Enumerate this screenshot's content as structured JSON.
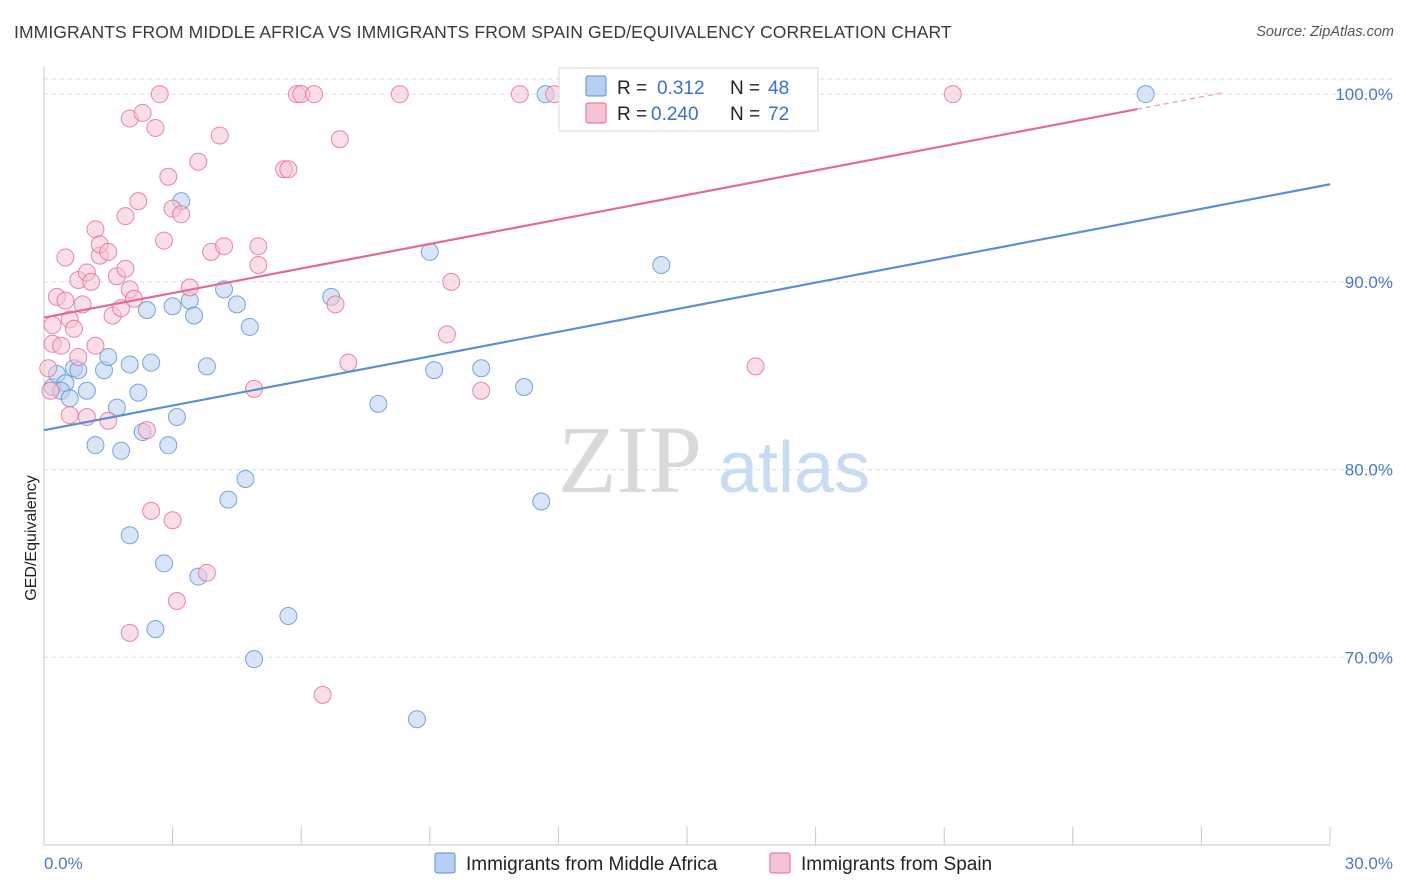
{
  "title": "IMMIGRANTS FROM MIDDLE AFRICA VS IMMIGRANTS FROM SPAIN GED/EQUIVALENCY CORRELATION CHART",
  "source": "Source: ZipAtlas.com",
  "watermark": {
    "zip": "ZIP",
    "atlas": "atlas"
  },
  "colors": {
    "blue": "#5b8fd6",
    "blue_fill": "#b7cff1",
    "pink": "#e46a92",
    "pink_fill": "#f6c3d3",
    "grid": "#dddddd",
    "tick_text": "#4a78c8"
  },
  "legend": {
    "r_label": "R =",
    "n_label": "N =",
    "items": [
      {
        "r": "0.312",
        "n": "48"
      },
      {
        "r": "0.240",
        "n": "72"
      }
    ]
  },
  "chart_data": {
    "type": "scatter",
    "title": "IMMIGRANTS FROM MIDDLE AFRICA VS IMMIGRANTS FROM SPAIN GED/EQUIVALENCY CORRELATION CHART",
    "xlabel": "",
    "ylabel": "GED/Equivalency",
    "xlim": [
      0,
      30
    ],
    "ylim": [
      60,
      101.5
    ],
    "x_tick_labels": [
      "0.0%",
      "30.0%"
    ],
    "y_ticks": [
      70,
      80,
      90,
      100
    ],
    "y_tick_labels": [
      "70.0%",
      "80.0%",
      "90.0%",
      "100.0%"
    ],
    "grid": true,
    "legend_placement": "top-center",
    "series": [
      {
        "name": "Immigrants from Middle Africa",
        "color": "#5b8fd6",
        "trend": {
          "x": [
            0,
            30
          ],
          "y": [
            82.1,
            95.2
          ]
        },
        "points": [
          [
            0.2,
            84.4
          ],
          [
            0.3,
            85.1
          ],
          [
            0.5,
            84.6
          ],
          [
            0.4,
            84.2
          ],
          [
            0.6,
            83.8
          ],
          [
            0.7,
            85.4
          ],
          [
            0.8,
            85.3
          ],
          [
            1.0,
            84.2
          ],
          [
            1.2,
            81.3
          ],
          [
            1.4,
            85.3
          ],
          [
            1.5,
            86.0
          ],
          [
            1.7,
            83.3
          ],
          [
            1.8,
            81.0
          ],
          [
            2.0,
            76.5
          ],
          [
            2.0,
            85.6
          ],
          [
            2.2,
            84.1
          ],
          [
            2.3,
            82.0
          ],
          [
            2.4,
            88.5
          ],
          [
            2.5,
            85.7
          ],
          [
            2.6,
            71.5
          ],
          [
            2.8,
            75.0
          ],
          [
            2.9,
            81.3
          ],
          [
            3.0,
            88.7
          ],
          [
            3.1,
            82.8
          ],
          [
            3.2,
            94.3
          ],
          [
            3.4,
            89.0
          ],
          [
            3.5,
            88.2
          ],
          [
            3.6,
            74.3
          ],
          [
            3.8,
            85.5
          ],
          [
            4.2,
            89.6
          ],
          [
            4.3,
            78.4
          ],
          [
            4.5,
            88.8
          ],
          [
            4.7,
            79.5
          ],
          [
            4.8,
            87.6
          ],
          [
            4.9,
            69.9
          ],
          [
            5.7,
            72.2
          ],
          [
            6.7,
            89.2
          ],
          [
            7.8,
            83.5
          ],
          [
            8.7,
            66.7
          ],
          [
            9.0,
            91.6
          ],
          [
            9.1,
            85.3
          ],
          [
            10.2,
            85.4
          ],
          [
            11.2,
            84.4
          ],
          [
            11.6,
            78.3
          ],
          [
            11.7,
            100.0
          ],
          [
            14.4,
            90.9
          ],
          [
            25.7,
            100.0
          ]
        ]
      },
      {
        "name": "Immigrants from Spain",
        "color": "#e46a92",
        "trend": {
          "x": [
            0,
            25.5
          ],
          "y": [
            88.1,
            99.2
          ]
        },
        "points": [
          [
            0.1,
            85.4
          ],
          [
            0.15,
            84.2
          ],
          [
            0.2,
            86.7
          ],
          [
            0.2,
            87.7
          ],
          [
            0.3,
            89.2
          ],
          [
            0.4,
            86.6
          ],
          [
            0.5,
            91.3
          ],
          [
            0.5,
            89.0
          ],
          [
            0.6,
            82.9
          ],
          [
            0.6,
            88.0
          ],
          [
            0.7,
            87.5
          ],
          [
            0.8,
            86.0
          ],
          [
            0.8,
            90.1
          ],
          [
            0.9,
            88.8
          ],
          [
            1.0,
            82.8
          ],
          [
            1.0,
            90.5
          ],
          [
            1.1,
            90.0
          ],
          [
            1.2,
            86.6
          ],
          [
            1.2,
            92.8
          ],
          [
            1.3,
            91.4
          ],
          [
            1.3,
            92.0
          ],
          [
            1.5,
            82.6
          ],
          [
            1.5,
            91.6
          ],
          [
            1.6,
            88.2
          ],
          [
            1.7,
            90.3
          ],
          [
            1.8,
            88.6
          ],
          [
            1.9,
            93.5
          ],
          [
            1.9,
            90.7
          ],
          [
            2.0,
            71.3
          ],
          [
            2.0,
            89.6
          ],
          [
            2.0,
            98.7
          ],
          [
            2.1,
            89.1
          ],
          [
            2.2,
            94.3
          ],
          [
            2.3,
            99.0
          ],
          [
            2.4,
            82.1
          ],
          [
            2.5,
            77.8
          ],
          [
            2.6,
            98.2
          ],
          [
            2.7,
            100.0
          ],
          [
            2.8,
            92.2
          ],
          [
            2.9,
            95.6
          ],
          [
            3.0,
            77.3
          ],
          [
            3.0,
            93.9
          ],
          [
            3.1,
            73.0
          ],
          [
            3.2,
            93.6
          ],
          [
            3.4,
            89.7
          ],
          [
            3.6,
            96.4
          ],
          [
            3.8,
            74.5
          ],
          [
            3.9,
            91.6
          ],
          [
            4.1,
            97.8
          ],
          [
            4.2,
            91.9
          ],
          [
            4.9,
            84.3
          ],
          [
            5.0,
            91.9
          ],
          [
            5.0,
            90.9
          ],
          [
            5.6,
            96.0
          ],
          [
            5.7,
            96.0
          ],
          [
            5.9,
            100.0
          ],
          [
            6.0,
            100.0
          ],
          [
            6.3,
            100.0
          ],
          [
            6.5,
            68.0
          ],
          [
            6.8,
            88.8
          ],
          [
            6.9,
            97.6
          ],
          [
            7.1,
            85.7
          ],
          [
            8.3,
            100.0
          ],
          [
            9.4,
            87.2
          ],
          [
            9.5,
            90.0
          ],
          [
            10.2,
            84.2
          ],
          [
            11.1,
            100.0
          ],
          [
            11.9,
            100.0
          ],
          [
            16.6,
            85.5
          ],
          [
            21.2,
            100.0
          ]
        ]
      }
    ]
  },
  "bottom_legend": [
    "Immigrants from Middle Africa",
    "Immigrants from Spain"
  ]
}
